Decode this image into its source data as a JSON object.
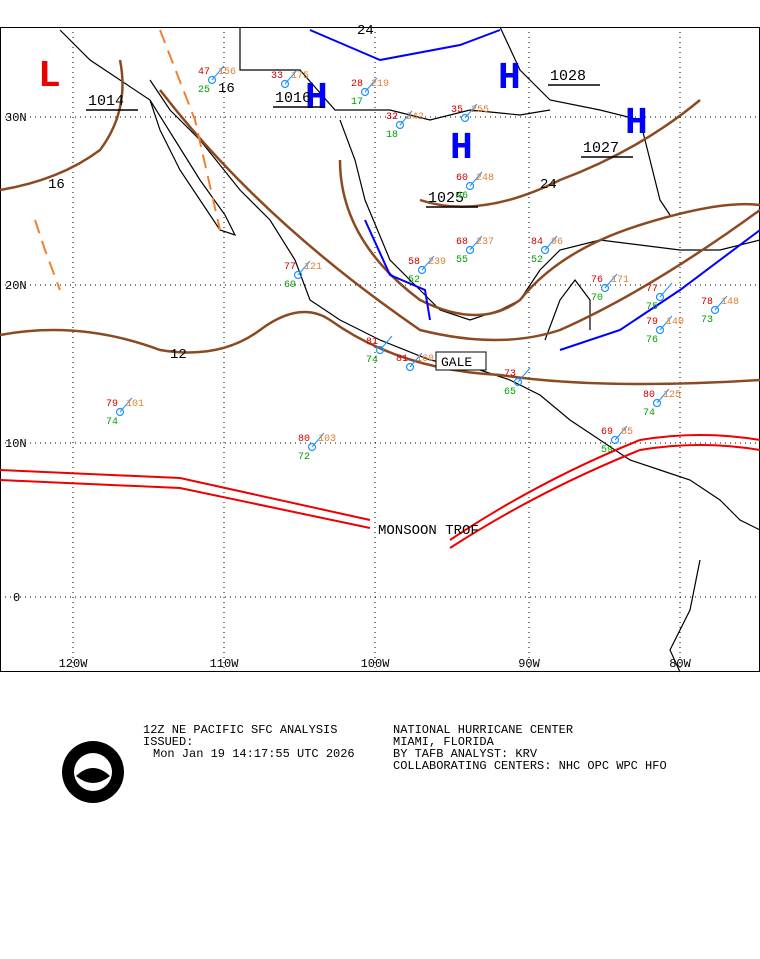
{
  "map": {
    "lat_labels": [
      "30N",
      "20N",
      "10N",
      "0"
    ],
    "lon_labels": [
      "120W",
      "110W",
      "100W",
      "90W",
      "80W"
    ],
    "pressure_centers": [
      {
        "kind": "L",
        "value": "1014"
      },
      {
        "kind": "H",
        "value": "1016"
      },
      {
        "kind": "H",
        "value": "1025"
      },
      {
        "kind": "H",
        "value": "1028"
      },
      {
        "kind": "H",
        "value": "1027"
      }
    ],
    "isobar_labels": [
      "16",
      "16",
      "12",
      "24",
      "24"
    ],
    "features": [
      "MONSOON TROF",
      "GALE"
    ],
    "stations": [
      {
        "t": "79",
        "p": "101",
        "d": "74"
      },
      {
        "t": "80",
        "p": "103",
        "d": "72"
      },
      {
        "t": "77",
        "p": "121",
        "d": "69"
      },
      {
        "t": "81",
        "p": "",
        "d": "74"
      },
      {
        "t": "81",
        "p": "160",
        "d": ""
      },
      {
        "t": "58",
        "p": "239",
        "d": "52"
      },
      {
        "t": "68",
        "p": "237",
        "d": "55"
      },
      {
        "t": "84",
        "p": "96",
        "d": "52"
      },
      {
        "t": "76",
        "p": "171",
        "d": "70"
      },
      {
        "t": "77",
        "p": "",
        "d": "75"
      },
      {
        "t": "78",
        "p": "148",
        "d": "73"
      },
      {
        "t": "79",
        "p": "140",
        "d": "76"
      },
      {
        "t": "80",
        "p": "125",
        "d": "74"
      },
      {
        "t": "69",
        "p": "85",
        "d": "59"
      },
      {
        "t": "73",
        "p": "",
        "d": "65"
      },
      {
        "t": "60",
        "p": "248",
        "d": "46"
      },
      {
        "t": "35",
        "p": "255",
        "d": ""
      },
      {
        "t": "32",
        "p": "242",
        "d": "18"
      },
      {
        "t": "28",
        "p": "219",
        "d": "17"
      },
      {
        "t": "33",
        "p": "175",
        "d": ""
      },
      {
        "t": "47",
        "p": "156",
        "d": "25"
      }
    ]
  },
  "footer": {
    "product": "12Z NE PACIFIC SFC ANALYSIS",
    "issued_label": "ISSUED:",
    "issued": "Mon Jan 19 14:17:55 UTC 2026",
    "center": "NATIONAL HURRICANE CENTER",
    "location": "MIAMI, FLORIDA",
    "analyst": "BY TAFB ANALYST: KRV",
    "collab": "COLLABORATING CENTERS: NHC OPC WPC HFO"
  }
}
